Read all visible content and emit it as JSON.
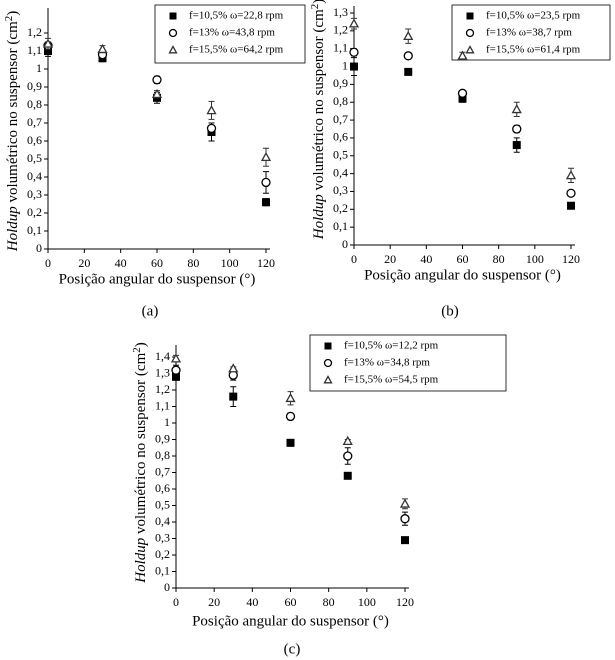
{
  "chart_data": [
    {
      "type": "scatter",
      "caption": "(a)",
      "xlabel": "Posição angular do suspensor (°)",
      "ylabel": {
        "italic": "Holdup",
        "text": " volumétrico no suspensor (cm",
        "sup": "2",
        "end": ")"
      },
      "x": [
        0,
        30,
        60,
        90,
        120
      ],
      "xlim": [
        0,
        120
      ],
      "xticks": [
        0,
        20,
        40,
        60,
        80,
        100,
        120
      ],
      "ylim": [
        0,
        1.2
      ],
      "yticks": [
        0,
        {
          "value": 0.1,
          "label": "0,1"
        },
        {
          "value": 0.2,
          "label": "0,2"
        },
        {
          "value": 0.3,
          "label": "0,3"
        },
        {
          "value": 0.4,
          "label": "0,4"
        },
        {
          "value": 0.5,
          "label": "0,5"
        },
        {
          "value": 0.6,
          "label": "0,6"
        },
        {
          "value": 0.7,
          "label": "0,7"
        },
        {
          "value": 0.8,
          "label": "0,8"
        },
        {
          "value": 0.9,
          "label": "0,9"
        },
        1,
        {
          "value": 1.1,
          "label": "1,1"
        },
        {
          "value": 1.2,
          "label": "1,2"
        }
      ],
      "series": [
        {
          "name": "f=10,5% ω=22,8 rpm",
          "marker": "square",
          "color": "#000000",
          "values": [
            1.1,
            1.06,
            0.84,
            0.65,
            0.26
          ],
          "errors": [
            0.03,
            0.02,
            0.03,
            0.05,
            0.02
          ]
        },
        {
          "name": "f=13% ω=43,8 rpm",
          "marker": "circle",
          "color": "#000000",
          "values": [
            1.13,
            1.08,
            0.94,
            0.67,
            0.37
          ],
          "errors": [
            0.02,
            0.02,
            0.02,
            0.03,
            0.06
          ]
        },
        {
          "name": "f=15,5% ω=64,2 rpm",
          "marker": "triangle",
          "color": "#333333",
          "values": [
            1.14,
            1.11,
            0.86,
            0.77,
            0.51
          ],
          "errors": [
            0.03,
            0.02,
            0.02,
            0.05,
            0.05
          ]
        }
      ]
    },
    {
      "type": "scatter",
      "caption": "(b)",
      "xlabel": "Posição angular do suspensor (°)",
      "ylabel": {
        "italic": "Holdup",
        "text": " volumétrico no suspensor (cm",
        "sup": "2",
        "end": ")"
      },
      "x": [
        0,
        30,
        60,
        90,
        120
      ],
      "xlim": [
        0,
        120
      ],
      "xticks": [
        0,
        20,
        40,
        60,
        80,
        100,
        120
      ],
      "ylim": [
        0,
        1.3
      ],
      "yticks": [
        0,
        {
          "value": 0.1,
          "label": "0,1"
        },
        {
          "value": 0.2,
          "label": "0,2"
        },
        {
          "value": 0.3,
          "label": "0,3"
        },
        {
          "value": 0.4,
          "label": "0,4"
        },
        {
          "value": 0.5,
          "label": "0,5"
        },
        {
          "value": 0.6,
          "label": "0,6"
        },
        {
          "value": 0.7,
          "label": "0,7"
        },
        {
          "value": 0.8,
          "label": "0,8"
        },
        {
          "value": 0.9,
          "label": "0,9"
        },
        1,
        {
          "value": 1.1,
          "label": "1,1"
        },
        {
          "value": 1.2,
          "label": "1,2"
        },
        {
          "value": 1.3,
          "label": "1,3"
        }
      ],
      "series": [
        {
          "name": "f=10,5% ω=23,5 rpm",
          "marker": "square",
          "color": "#000000",
          "values": [
            1.0,
            0.97,
            0.82,
            0.56,
            0.22
          ],
          "errors": [
            0.05,
            0.01,
            0.02,
            0.04,
            0.01
          ]
        },
        {
          "name": "f=13% ω=38,7 rpm",
          "marker": "circle",
          "color": "#000000",
          "values": [
            1.08,
            1.06,
            0.85,
            0.65,
            0.29
          ],
          "errors": [
            0.02,
            0.01,
            0.01,
            0.02,
            0.01
          ]
        },
        {
          "name": "f=15,5% ω=61,4 rpm",
          "marker": "triangle",
          "color": "#333333",
          "values": [
            1.24,
            1.17,
            1.06,
            0.76,
            0.39
          ],
          "errors": [
            0.03,
            0.04,
            0.02,
            0.04,
            0.04
          ]
        }
      ]
    },
    {
      "type": "scatter",
      "caption": "(c)",
      "xlabel": "Posição angular do suspensor (°)",
      "ylabel": {
        "italic": "Holdup",
        "text": " volumétrico no suspensor (cm",
        "sup": "2",
        "end": ")"
      },
      "x": [
        0,
        30,
        60,
        90,
        120
      ],
      "xlim": [
        0,
        120
      ],
      "xticks": [
        0,
        20,
        40,
        60,
        80,
        100,
        120
      ],
      "ylim": [
        0,
        1.4
      ],
      "yticks": [
        0,
        {
          "value": 0.1,
          "label": "0,1"
        },
        {
          "value": 0.2,
          "label": "0,2"
        },
        {
          "value": 0.3,
          "label": "0,3"
        },
        {
          "value": 0.4,
          "label": "0,4"
        },
        {
          "value": 0.5,
          "label": "0,5"
        },
        {
          "value": 0.6,
          "label": "0,6"
        },
        {
          "value": 0.7,
          "label": "0,7"
        },
        {
          "value": 0.8,
          "label": "0,8"
        },
        {
          "value": 0.9,
          "label": "0,9"
        },
        1,
        {
          "value": 1.1,
          "label": "1,1"
        },
        {
          "value": 1.2,
          "label": "1,2"
        },
        {
          "value": 1.3,
          "label": "1,3"
        },
        {
          "value": 1.4,
          "label": "1,4"
        }
      ],
      "series": [
        {
          "name": "f=10,5% ω=12,2 rpm",
          "marker": "square",
          "color": "#000000",
          "values": [
            1.28,
            1.16,
            0.88,
            0.68,
            0.29
          ],
          "errors": [
            0.02,
            0.06,
            0.02,
            0.01,
            0.01
          ]
        },
        {
          "name": "f=13% ω=34,8 rpm",
          "marker": "circle",
          "color": "#000000",
          "values": [
            1.32,
            1.29,
            1.04,
            0.8,
            0.42
          ],
          "errors": [
            0.03,
            0.03,
            0.02,
            0.05,
            0.04
          ]
        },
        {
          "name": "f=15,5% ω=54,5 rpm",
          "marker": "triangle",
          "color": "#333333",
          "values": [
            1.39,
            1.33,
            1.15,
            0.89,
            0.51
          ],
          "errors": [
            0.02,
            0.01,
            0.04,
            0.01,
            0.03
          ]
        }
      ]
    }
  ]
}
